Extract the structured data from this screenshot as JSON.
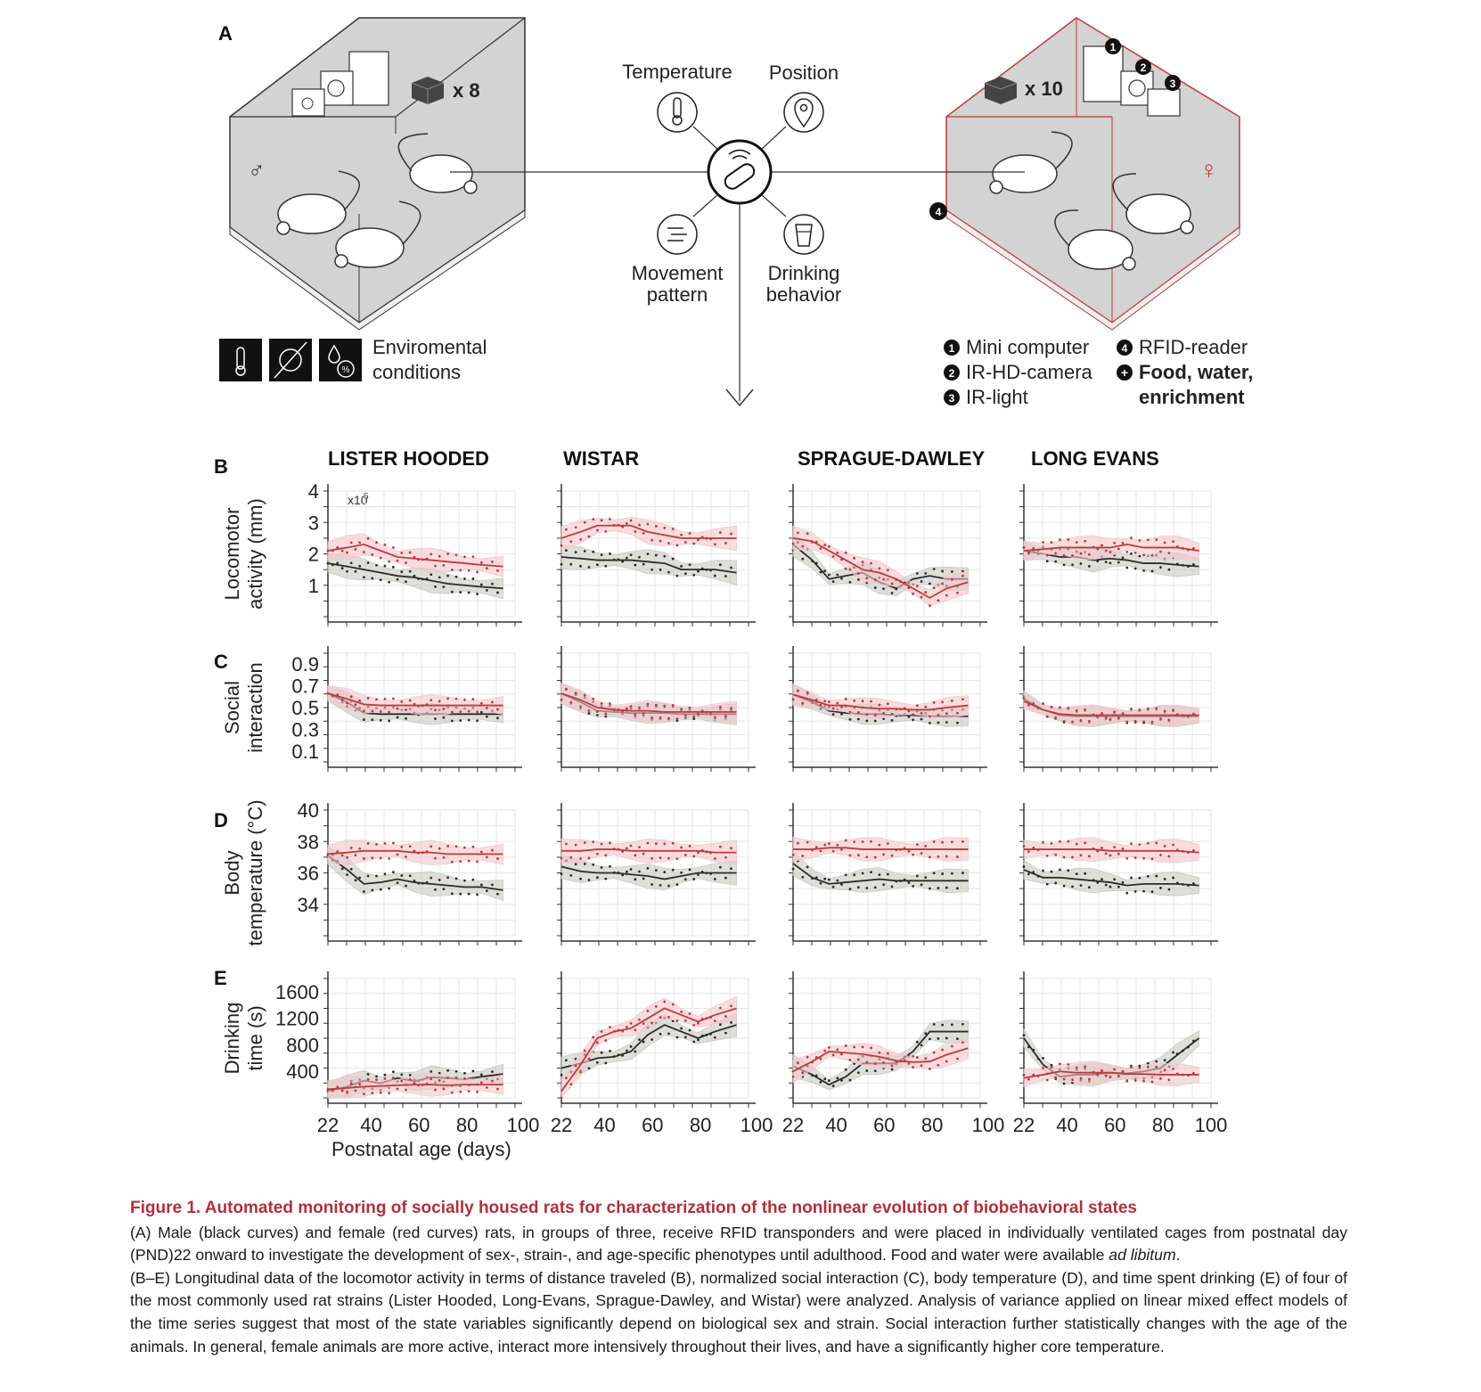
{
  "panel_labels": [
    "A",
    "B",
    "C",
    "D",
    "E"
  ],
  "schematic": {
    "male_cage": {
      "symbol": "♂",
      "count": "x 8"
    },
    "female_cage": {
      "symbol": "♀",
      "count": "x 10",
      "marker4": "4"
    },
    "center": {
      "temperature": "Temperature",
      "position": "Position",
      "movement_l1": "Movement",
      "movement_l2": "pattern",
      "drinking_l1": "Drinking",
      "drinking_l2": "behavior"
    },
    "env_l1": "Enviromental",
    "env_l2": "conditions",
    "legend": {
      "m1": "1",
      "t1": "Mini computer",
      "m2": "2",
      "t2": "IR-HD-camera",
      "m3": "3",
      "t3": "IR-light",
      "m4": "4",
      "t4": "RFID-reader",
      "m5": "+",
      "t5a": "Food, water,",
      "t5b": "enrichment"
    }
  },
  "chart_data": {
    "type": "line",
    "strains": [
      "LISTER HOODED",
      "WISTAR",
      "SPRAGUE-DAWLEY",
      "LONG EVANS"
    ],
    "x": [
      22,
      30,
      37,
      44,
      51,
      58,
      65,
      72,
      79,
      86,
      95
    ],
    "xlabel": "Postnatal age (days)",
    "xticks": [
      22,
      40,
      60,
      80,
      100
    ],
    "xlim": [
      22,
      100
    ],
    "colors": {
      "male": "#2b2b2b",
      "female": "#c0393b",
      "male_band": "#c9c9c2",
      "female_band": "#f2c6cb"
    },
    "rows": [
      {
        "key": "B",
        "ylabel_l1": "Locomotor",
        "ylabel_l2": "activity (mm)",
        "multiplier": "x10",
        "multiplier_exp": "5",
        "ylim": [
          0,
          4
        ],
        "yticks": [
          1,
          2,
          3,
          4
        ],
        "series": [
          {
            "sex": "male",
            "values": [
              [
                1.7,
                1.6,
                1.5,
                1.4,
                1.3,
                1.25,
                1.15,
                1.05,
                1.0,
                0.95,
                0.9
              ],
              [
                1.9,
                1.85,
                1.8,
                1.8,
                1.8,
                1.75,
                1.7,
                1.5,
                1.5,
                1.5,
                1.4
              ],
              [
                2.3,
                1.8,
                1.2,
                1.3,
                1.4,
                1.1,
                0.9,
                1.2,
                1.3,
                1.2,
                1.2
              ],
              [
                2.1,
                2.0,
                1.9,
                1.9,
                1.8,
                1.85,
                1.8,
                1.7,
                1.7,
                1.65,
                1.6
              ]
            ]
          },
          {
            "sex": "female",
            "values": [
              [
                2.1,
                2.2,
                2.3,
                2.1,
                1.9,
                1.85,
                1.8,
                1.75,
                1.7,
                1.65,
                1.6
              ],
              [
                2.5,
                2.7,
                2.9,
                2.9,
                2.9,
                2.7,
                2.6,
                2.5,
                2.5,
                2.5,
                2.5
              ],
              [
                2.5,
                2.4,
                2.1,
                1.8,
                1.5,
                1.4,
                1.2,
                0.9,
                0.6,
                0.9,
                1.1
              ],
              [
                2.1,
                2.15,
                2.2,
                2.2,
                2.2,
                2.2,
                2.3,
                2.2,
                2.2,
                2.2,
                2.1
              ]
            ]
          }
        ]
      },
      {
        "key": "C",
        "ylabel_l1": "Social",
        "ylabel_l2": "interaction",
        "ylim": [
          0,
          1
        ],
        "yticks": [
          0.1,
          0.3,
          0.5,
          0.7,
          0.9
        ],
        "series": [
          {
            "sex": "male",
            "values": [
              [
                0.63,
                0.55,
                0.45,
                0.44,
                0.44,
                0.44,
                0.44,
                0.44,
                0.44,
                0.44,
                0.44
              ],
              [
                0.63,
                0.55,
                0.47,
                0.46,
                0.45,
                0.45,
                0.45,
                0.44,
                0.44,
                0.44,
                0.44
              ],
              [
                0.62,
                0.55,
                0.47,
                0.45,
                0.44,
                0.44,
                0.43,
                0.43,
                0.42,
                0.42,
                0.42
              ],
              [
                0.58,
                0.48,
                0.43,
                0.42,
                0.42,
                0.42,
                0.42,
                0.42,
                0.42,
                0.42,
                0.42
              ]
            ]
          },
          {
            "sex": "female",
            "values": [
              [
                0.63,
                0.58,
                0.53,
                0.52,
                0.52,
                0.52,
                0.52,
                0.52,
                0.52,
                0.52,
                0.52
              ],
              [
                0.63,
                0.57,
                0.5,
                0.48,
                0.47,
                0.47,
                0.46,
                0.46,
                0.46,
                0.46,
                0.46
              ],
              [
                0.62,
                0.57,
                0.52,
                0.52,
                0.5,
                0.49,
                0.49,
                0.48,
                0.48,
                0.5,
                0.52
              ],
              [
                0.56,
                0.48,
                0.44,
                0.43,
                0.43,
                0.43,
                0.43,
                0.43,
                0.43,
                0.43,
                0.43
              ]
            ]
          }
        ]
      },
      {
        "key": "D",
        "ylabel_l1": "Body",
        "ylabel_l2": "temperature (°C)",
        "ylim": [
          32,
          40
        ],
        "yticks": [
          34,
          36,
          38,
          40
        ],
        "series": [
          {
            "sex": "male",
            "values": [
              [
                37.1,
                36.2,
                35.3,
                35.4,
                35.6,
                35.4,
                35.3,
                35.2,
                35.1,
                35.1,
                34.9
              ],
              [
                36.4,
                36.1,
                36.0,
                36.0,
                35.9,
                35.8,
                35.6,
                35.8,
                36.0,
                36.0,
                36.0
              ],
              [
                36.6,
                35.7,
                35.3,
                35.4,
                35.5,
                35.6,
                35.5,
                35.5,
                35.5,
                35.5,
                35.5
              ],
              [
                36.2,
                35.7,
                35.7,
                35.6,
                35.5,
                35.4,
                35.2,
                35.3,
                35.3,
                35.3,
                35.2
              ]
            ]
          },
          {
            "sex": "female",
            "values": [
              [
                37.2,
                37.3,
                37.4,
                37.4,
                37.4,
                37.3,
                37.3,
                37.2,
                37.2,
                37.2,
                37.2
              ],
              [
                37.4,
                37.4,
                37.5,
                37.5,
                37.4,
                37.4,
                37.4,
                37.4,
                37.4,
                37.3,
                37.3
              ],
              [
                37.5,
                37.5,
                37.6,
                37.6,
                37.5,
                37.5,
                37.5,
                37.5,
                37.5,
                37.5,
                37.5
              ],
              [
                37.5,
                37.5,
                37.5,
                37.5,
                37.5,
                37.4,
                37.4,
                37.4,
                37.4,
                37.4,
                37.3
              ]
            ]
          }
        ]
      },
      {
        "key": "E",
        "ylabel_l1": "Drinking",
        "ylabel_l2": "time (s)",
        "ylim": [
          0,
          1800
        ],
        "yticks": [
          400,
          800,
          1200,
          1600
        ],
        "series": [
          {
            "sex": "male",
            "values": [
              [
                100,
                170,
                260,
                220,
                300,
                250,
                310,
                300,
                280,
                320,
                360
              ],
              [
                450,
                520,
                600,
                620,
                700,
                950,
                1100,
                1000,
                900,
                1000,
                1100
              ],
              [
                480,
                350,
                200,
                320,
                520,
                520,
                520,
                700,
                1000,
                1000,
                1000
              ],
              [
                900,
                500,
                320,
                350,
                350,
                380,
                370,
                400,
                450,
                650,
                900
              ]
            ]
          },
          {
            "sex": "female",
            "values": [
              [
                130,
                150,
                170,
                180,
                190,
                200,
                200,
                190,
                200,
                200,
                200
              ],
              [
                100,
                500,
                900,
                1000,
                1050,
                1200,
                1350,
                1250,
                1150,
                1250,
                1350
              ],
              [
                400,
                550,
                700,
                680,
                660,
                620,
                560,
                540,
                550,
                650,
                750
              ],
              [
                300,
                350,
                400,
                380,
                380,
                380,
                360,
                360,
                350,
                350,
                350
              ]
            ]
          }
        ]
      }
    ]
  },
  "caption": {
    "title": "Figure 1.  Automated monitoring of socially housed rats for characterization of the nonlinear evolution of biobehavioral states",
    "body_a1": "(A) Male (black curves) and female (red curves) rats, in groups of three, receive RFID transponders and were placed in individually ventilated cages from postnatal day (PND)22 onward to investigate the development of sex-, strain-, and age-specific phenotypes until adulthood. Food and water were available ",
    "body_a2": "ad libitum",
    "body_a3": ".",
    "body_b": "(B–E) Longitudinal data of the locomotor activity in terms of distance traveled (B), normalized social interaction (C), body temperature (D), and time spent drinking (E) of four of the most commonly used rat strains (Lister Hooded, Long-Evans, Sprague-Dawley, and Wistar) were analyzed. Analysis of variance applied on linear mixed effect models of the time series suggest that most of the state variables significantly depend on biological sex and strain. Social interaction further statistically changes with the age of the animals. In general, female animals are more active, interact more intensively throughout their lives, and have a significantly higher core temperature."
  }
}
